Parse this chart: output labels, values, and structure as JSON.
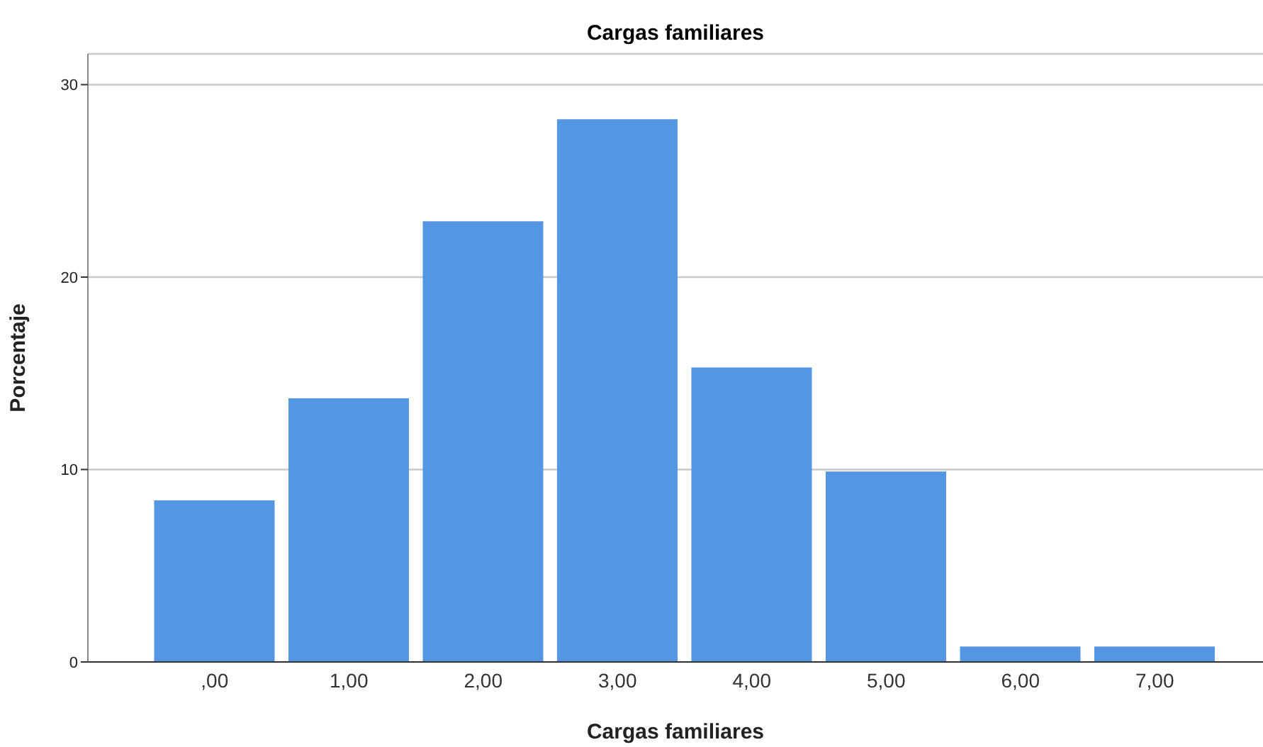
{
  "chart_data": {
    "type": "bar",
    "title": "Cargas familiares",
    "xlabel": "Cargas familiares",
    "ylabel": "Porcentaje",
    "categories": [
      ",00",
      "1,00",
      "2,00",
      "3,00",
      "4,00",
      "5,00",
      "6,00",
      "7,00"
    ],
    "values": [
      8.4,
      13.7,
      22.9,
      28.2,
      15.3,
      9.9,
      0.8,
      0.8
    ],
    "color": "#5596e3",
    "ylim": [
      0,
      31.6
    ],
    "yticks": [
      0,
      10,
      20,
      30
    ],
    "grid": "y",
    "legend": false
  }
}
